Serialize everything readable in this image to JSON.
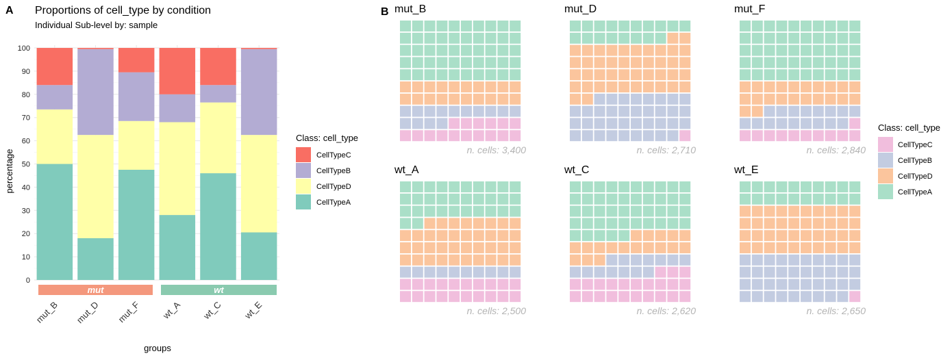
{
  "panel_a": {
    "tag": "A",
    "chart_data": {
      "type": "bar",
      "stacked": true,
      "title": "Proportions of cell_type by condition",
      "subtitle": "Individual Sub-level by: sample",
      "xlabel": "groups",
      "ylabel": "percentage",
      "ylim": [
        0,
        100
      ],
      "yticks": [
        0,
        10,
        20,
        30,
        40,
        50,
        60,
        70,
        80,
        90,
        100
      ],
      "categories": [
        "mut_B",
        "mut_D",
        "mut_F",
        "wt_A",
        "wt_C",
        "wt_E"
      ],
      "series": [
        {
          "name": "CellTypeA",
          "color": "#80CBBC",
          "values": [
            50,
            18,
            47.5,
            28,
            46,
            20.5
          ]
        },
        {
          "name": "CellTypeD",
          "color": "#FFFFA8",
          "values": [
            23.5,
            44.5,
            21,
            40,
            30.5,
            42
          ]
        },
        {
          "name": "CellTypeB",
          "color": "#B3ACD3",
          "values": [
            10.5,
            37,
            21,
            12,
            7.5,
            37
          ]
        },
        {
          "name": "CellTypeC",
          "color": "#F96E63",
          "values": [
            16,
            0.5,
            10.5,
            20,
            16,
            0.5
          ]
        }
      ],
      "groups": [
        {
          "label": "mut",
          "color": "#F4987D",
          "members": [
            "mut_B",
            "mut_D",
            "mut_F"
          ]
        },
        {
          "label": "wt",
          "color": "#8ACAAF",
          "members": [
            "wt_A",
            "wt_C",
            "wt_E"
          ]
        }
      ],
      "legend": {
        "title": "Class: cell_type",
        "position": "right",
        "entries": [
          {
            "name": "CellTypeC",
            "color": "#F96E63"
          },
          {
            "name": "CellTypeB",
            "color": "#B3ACD3"
          },
          {
            "name": "CellTypeD",
            "color": "#FFFFA8"
          },
          {
            "name": "CellTypeA",
            "color": "#80CBBC"
          }
        ]
      },
      "grid": true
    }
  },
  "panel_b": {
    "tag": "B",
    "chart_data": {
      "type": "waffle",
      "rows": 10,
      "cols": 10,
      "fill_order": "row-wise from top-left: CellTypeA, CellTypeD, CellTypeB, CellTypeC",
      "colors": {
        "CellTypeA": "#AADFC8",
        "CellTypeD": "#FBC59D",
        "CellTypeB": "#C3CCE1",
        "CellTypeC": "#F1BEDD"
      },
      "panels": [
        {
          "name": "mut_B",
          "caption": "n. cells: 3,400",
          "counts": {
            "CellTypeA": 50,
            "CellTypeD": 20,
            "CellTypeB": 14,
            "CellTypeC": 16
          }
        },
        {
          "name": "mut_D",
          "caption": "n. cells: 2,710",
          "counts": {
            "CellTypeA": 18,
            "CellTypeD": 44,
            "CellTypeB": 37,
            "CellTypeC": 1
          }
        },
        {
          "name": "mut_F",
          "caption": "n. cells: 2,840",
          "counts": {
            "CellTypeA": 50,
            "CellTypeD": 22,
            "CellTypeB": 17,
            "CellTypeC": 11
          }
        },
        {
          "name": "wt_A",
          "caption": "n. cells: 2,500",
          "counts": {
            "CellTypeA": 32,
            "CellTypeD": 38,
            "CellTypeB": 10,
            "CellTypeC": 20
          }
        },
        {
          "name": "wt_C",
          "caption": "n. cells: 2,620",
          "counts": {
            "CellTypeA": 45,
            "CellTypeD": 18,
            "CellTypeB": 14,
            "CellTypeC": 23
          }
        },
        {
          "name": "wt_E",
          "caption": "n. cells: 2,650",
          "counts": {
            "CellTypeA": 20,
            "CellTypeD": 40,
            "CellTypeB": 39,
            "CellTypeC": 1
          }
        }
      ],
      "legend": {
        "title": "Class: cell_type",
        "position": "right",
        "entries": [
          {
            "name": "CellTypeC",
            "color": "#F1BEDD"
          },
          {
            "name": "CellTypeB",
            "color": "#C3CCE1"
          },
          {
            "name": "CellTypeD",
            "color": "#FBC59D"
          },
          {
            "name": "CellTypeA",
            "color": "#AADFC8"
          }
        ]
      }
    }
  }
}
